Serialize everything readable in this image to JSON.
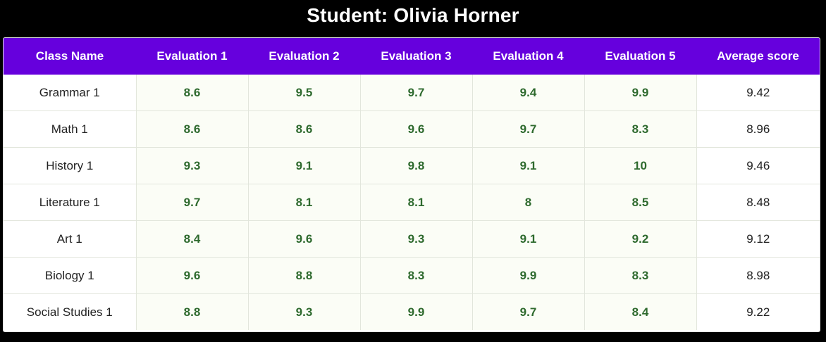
{
  "title": "Student: Olivia Horner",
  "table": {
    "headers": [
      "Class Name",
      "Evaluation 1",
      "Evaluation 2",
      "Evaluation 3",
      "Evaluation 4",
      "Evaluation 5",
      "Average score"
    ],
    "rows": [
      {
        "class_name": "Grammar 1",
        "evaluations": [
          "8.6",
          "9.5",
          "9.7",
          "9.4",
          "9.9"
        ],
        "average": "9.42"
      },
      {
        "class_name": "Math 1",
        "evaluations": [
          "8.6",
          "8.6",
          "9.6",
          "9.7",
          "8.3"
        ],
        "average": "8.96"
      },
      {
        "class_name": "History 1",
        "evaluations": [
          "9.3",
          "9.1",
          "9.8",
          "9.1",
          "10"
        ],
        "average": "9.46"
      },
      {
        "class_name": "Literature 1",
        "evaluations": [
          "9.7",
          "8.1",
          "8.1",
          "8",
          "8.5"
        ],
        "average": "8.48"
      },
      {
        "class_name": "Art 1",
        "evaluations": [
          "8.4",
          "9.6",
          "9.3",
          "9.1",
          "9.2"
        ],
        "average": "9.12"
      },
      {
        "class_name": "Biology 1",
        "evaluations": [
          "9.6",
          "8.8",
          "8.3",
          "9.9",
          "8.3"
        ],
        "average": "8.98"
      },
      {
        "class_name": "Social Studies 1",
        "evaluations": [
          "8.8",
          "9.3",
          "9.9",
          "9.7",
          "8.4"
        ],
        "average": "9.22"
      }
    ]
  },
  "colors": {
    "background": "#000000",
    "header_bg": "#6600dd",
    "header_text": "#ffffff",
    "eval_text": "#2e6a2e",
    "eval_cell_bg": "#fbfdf6",
    "name_text": "#222222"
  }
}
